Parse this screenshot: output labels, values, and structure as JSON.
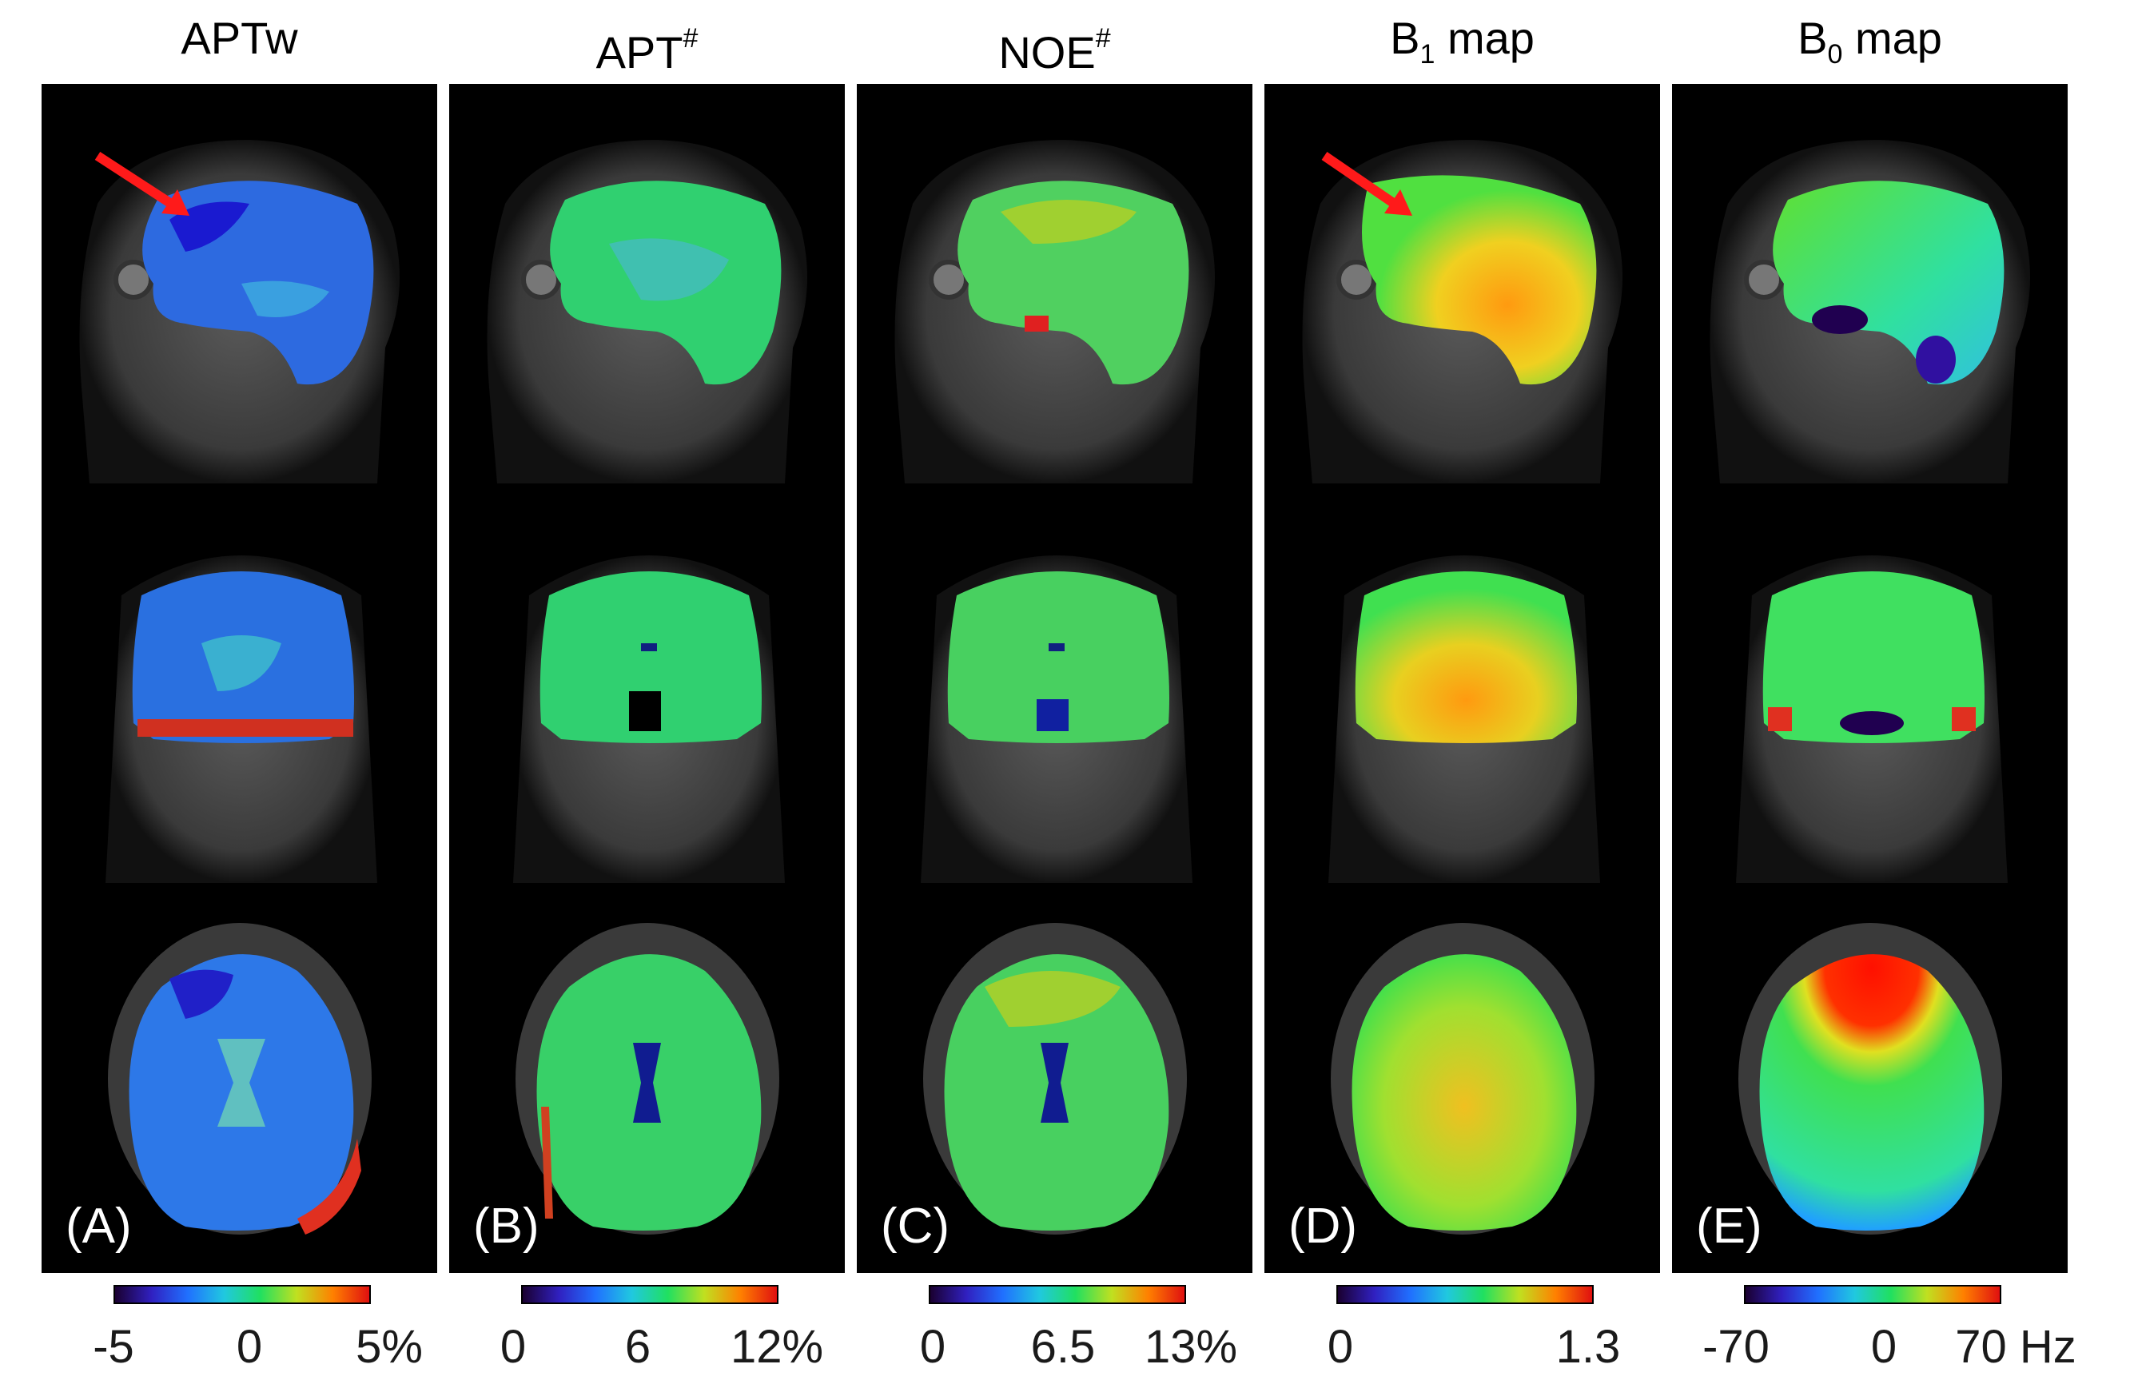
{
  "figure": {
    "columns": [
      {
        "title_main": "APTw",
        "title_script": "",
        "letter": "(A)",
        "ticks": [
          "-5",
          "0",
          "5%"
        ],
        "colormap": "jet-dark"
      },
      {
        "title_main": "APT",
        "title_script": "#",
        "letter": "(B)",
        "ticks": [
          "0",
          "6",
          "12%"
        ],
        "colormap": "jet-dark"
      },
      {
        "title_main": "NOE",
        "title_script": "#",
        "letter": "(C)",
        "ticks": [
          "0",
          "6.5",
          "13%"
        ],
        "colormap": "jet-dark"
      },
      {
        "title_main": "B",
        "title_script": "1",
        "title_suffix": " map",
        "letter": "(D)",
        "ticks": [
          "0",
          "1.3"
        ],
        "colormap": "jet-dark"
      },
      {
        "title_main": "B",
        "title_script": "0",
        "title_suffix": " map",
        "letter": "(E)",
        "ticks": [
          "-70",
          "0",
          "70 Hz"
        ],
        "colormap": "jet-dark"
      }
    ],
    "annotations": {
      "arrow_color": "#ff1a1a",
      "arrows_in_panels": [
        "(A)",
        "(D)"
      ]
    },
    "colors": {
      "background": "#ffffff",
      "panel": "#000000"
    }
  }
}
